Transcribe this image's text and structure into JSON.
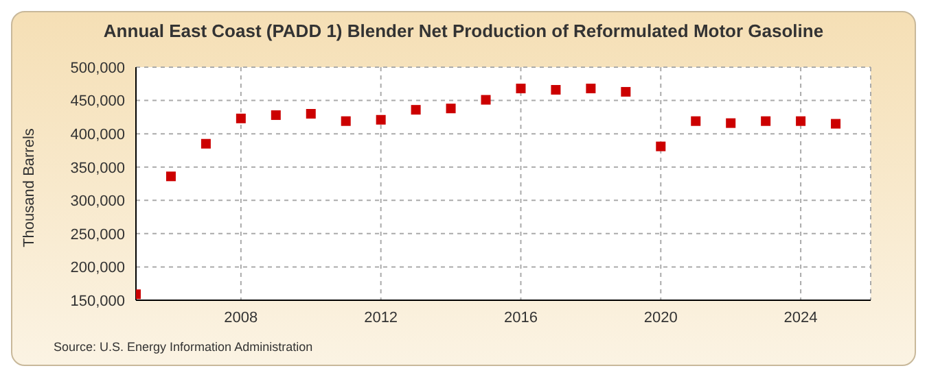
{
  "chart_data": {
    "type": "scatter",
    "title": "Annual East Coast (PADD 1) Blender Net Production of Reformulated Motor Gasoline",
    "ylabel": "Thousand Barrels",
    "x": [
      2005,
      2006,
      2007,
      2008,
      2009,
      2010,
      2011,
      2012,
      2013,
      2014,
      2015,
      2016,
      2017,
      2018,
      2019,
      2020,
      2021,
      2022,
      2023,
      2024,
      2025
    ],
    "series": [
      {
        "color": "#cc0000",
        "values": [
          159000,
          336000,
          385000,
          423000,
          428000,
          430000,
          419000,
          421000,
          436000,
          438000,
          451000,
          468000,
          466000,
          468000,
          463000,
          381000,
          419000,
          416000,
          419000,
          419000,
          415000
        ]
      }
    ],
    "xlim": [
      2005,
      2026
    ],
    "xticks": [
      2008,
      2012,
      2016,
      2020,
      2024
    ],
    "ylim": [
      150000,
      500000
    ],
    "yticks": [
      {
        "value": 150000,
        "label": "150,000"
      },
      {
        "value": 200000,
        "label": "200,000"
      },
      {
        "value": 250000,
        "label": "250,000"
      },
      {
        "value": 300000,
        "label": "300,000"
      },
      {
        "value": 350000,
        "label": "350,000"
      },
      {
        "value": 400000,
        "label": "400,000"
      },
      {
        "value": 450000,
        "label": "450,000"
      },
      {
        "value": 500000,
        "label": "500,000"
      }
    ],
    "grid": true,
    "marker": "square",
    "legend": false,
    "annotations": [
      "Source: U.S. Energy Information Administration"
    ]
  }
}
